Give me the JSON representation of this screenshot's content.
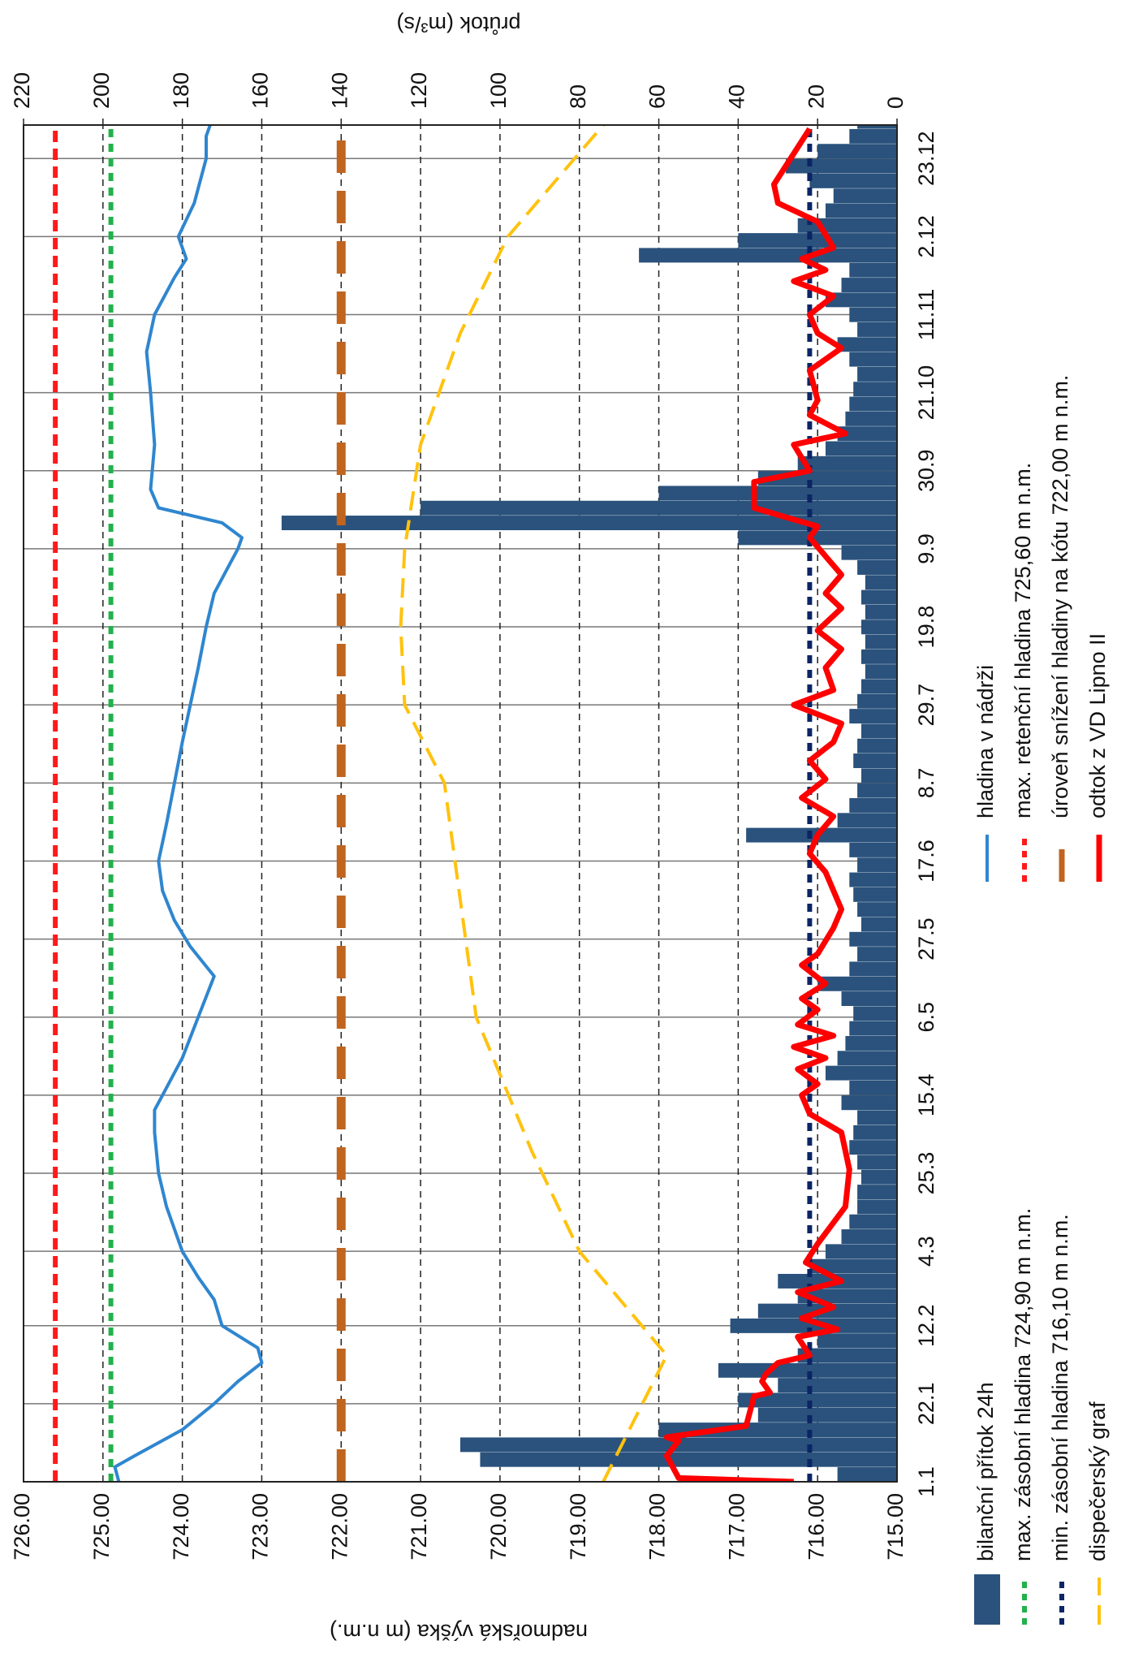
{
  "chart_data": {
    "type": "combo",
    "y_label": "nadmořská výška (m n.m.)",
    "y2_label": "průtok (m³/s)",
    "xlim": [
      1,
      366
    ],
    "xticks": [
      {
        "value": 1,
        "label": "1.1"
      },
      {
        "value": 22,
        "label": "22.1"
      },
      {
        "value": 43,
        "label": "12.2"
      },
      {
        "value": 63,
        "label": "4.3"
      },
      {
        "value": 84,
        "label": "25.3"
      },
      {
        "value": 105,
        "label": "15.4"
      },
      {
        "value": 126,
        "label": "6.5"
      },
      {
        "value": 147,
        "label": "27.5"
      },
      {
        "value": 168,
        "label": "17.6"
      },
      {
        "value": 189,
        "label": "8.7"
      },
      {
        "value": 210,
        "label": "29.7"
      },
      {
        "value": 231,
        "label": "19.8"
      },
      {
        "value": 252,
        "label": "9.9"
      },
      {
        "value": 273,
        "label": "30.9"
      },
      {
        "value": 294,
        "label": "21.10"
      },
      {
        "value": 315,
        "label": "11.11"
      },
      {
        "value": 336,
        "label": "2.12"
      },
      {
        "value": 357,
        "label": "23.12"
      }
    ],
    "ylim": [
      715,
      726
    ],
    "yticks": [
      {
        "value": 715,
        "label": "715.00"
      },
      {
        "value": 716,
        "label": "716.00"
      },
      {
        "value": 717,
        "label": "717.00"
      },
      {
        "value": 718,
        "label": "718.00"
      },
      {
        "value": 719,
        "label": "719.00"
      },
      {
        "value": 720,
        "label": "720.00"
      },
      {
        "value": 721,
        "label": "721.00"
      },
      {
        "value": 722,
        "label": "722.00"
      },
      {
        "value": 723,
        "label": "723.00"
      },
      {
        "value": 724,
        "label": "724.00"
      },
      {
        "value": 725,
        "label": "725.00"
      },
      {
        "value": 726,
        "label": "726.00"
      }
    ],
    "y2lim": [
      0,
      220
    ],
    "y2ticks": [
      0,
      20,
      40,
      60,
      80,
      100,
      120,
      140,
      160,
      180,
      200,
      220
    ],
    "grid": true,
    "series": [
      {
        "name": "bilanční přítok 24h",
        "type": "bar",
        "axis": "y2",
        "color": "#2a527c",
        "x": [
          1,
          5,
          9,
          13,
          17,
          21,
          25,
          29,
          33,
          37,
          41,
          45,
          49,
          53,
          57,
          61,
          65,
          69,
          73,
          77,
          81,
          85,
          89,
          93,
          97,
          101,
          105,
          109,
          113,
          117,
          121,
          125,
          129,
          133,
          137,
          141,
          145,
          149,
          153,
          157,
          161,
          165,
          169,
          173,
          177,
          181,
          185,
          189,
          193,
          197,
          201,
          205,
          209,
          213,
          217,
          221,
          225,
          229,
          233,
          237,
          241,
          245,
          249,
          253,
          257,
          261,
          265,
          269,
          273,
          277,
          281,
          285,
          289,
          293,
          297,
          301,
          305,
          309,
          313,
          317,
          321,
          325,
          329,
          333,
          337,
          341,
          345,
          349,
          353,
          357,
          361,
          365
        ],
        "values": [
          15,
          105,
          110,
          60,
          35,
          40,
          30,
          45,
          25,
          20,
          42,
          35,
          25,
          30,
          22,
          18,
          14,
          12,
          10,
          10,
          9,
          10,
          12,
          11,
          10,
          14,
          12,
          18,
          15,
          13,
          12,
          11,
          14,
          20,
          12,
          10,
          12,
          9,
          10,
          11,
          12,
          10,
          12,
          38,
          15,
          12,
          10,
          9,
          11,
          10,
          9,
          12,
          10,
          9,
          8,
          9,
          8,
          9,
          8,
          9,
          8,
          10,
          14,
          40,
          155,
          120,
          60,
          35,
          25,
          18,
          15,
          13,
          12,
          11,
          10,
          12,
          15,
          10,
          12,
          18,
          14,
          12,
          65,
          40,
          25,
          18,
          16,
          22,
          28,
          20,
          12,
          10
        ]
      },
      {
        "name": "hladina v nádrži",
        "type": "line",
        "axis": "y",
        "color": "#2f86cf",
        "x": [
          1,
          5,
          8,
          15,
          22,
          28,
          33,
          37,
          43,
          50,
          56,
          63,
          75,
          84,
          95,
          101,
          105,
          115,
          126,
          137,
          145,
          152,
          160,
          168,
          178,
          189,
          200,
          210,
          220,
          231,
          240,
          248,
          252,
          255,
          259,
          263,
          268,
          280,
          294,
          305,
          315,
          325,
          330,
          336,
          345,
          357,
          363,
          366
        ],
        "values": [
          724.8,
          724.85,
          724.6,
          724.0,
          723.6,
          723.3,
          723.0,
          723.05,
          723.5,
          723.6,
          723.8,
          724.0,
          724.2,
          724.3,
          724.35,
          724.35,
          724.25,
          724.0,
          723.8,
          723.6,
          723.9,
          724.1,
          724.25,
          724.3,
          724.2,
          724.1,
          724.0,
          723.9,
          723.8,
          723.7,
          723.6,
          723.4,
          723.3,
          723.25,
          723.5,
          724.3,
          724.4,
          724.35,
          724.4,
          724.45,
          724.35,
          724.1,
          723.95,
          724.05,
          723.85,
          723.7,
          723.7,
          723.65
        ]
      },
      {
        "name": "max. zásobní hladina 724,90 m n.m.",
        "type": "hline",
        "axis": "y",
        "color": "#22b14c",
        "value": 724.9
      },
      {
        "name": "max. retenční hladina 725,60 m n.m.",
        "type": "hline",
        "axis": "y",
        "color": "#ff1a1a",
        "value": 725.6
      },
      {
        "name": "min. zásobní hladina 716,10 m n.m.",
        "type": "hline",
        "axis": "y",
        "color": "#0b2566",
        "value": 716.1
      },
      {
        "name": "úroveň snížení hladiny na kótu 722,00 m n.m.",
        "type": "hline",
        "axis": "y",
        "color": "#c0641e",
        "value": 722
      },
      {
        "name": "dispečerský graf",
        "type": "line",
        "axis": "y",
        "color": "#ffc20e",
        "x": [
          1,
          35,
          63,
          90,
          126,
          189,
          210,
          231,
          252,
          280,
          310,
          336,
          366
        ],
        "values": [
          718.7,
          717.9,
          719.0,
          719.6,
          720.3,
          720.7,
          721.2,
          721.25,
          721.2,
          721.0,
          720.5,
          719.9,
          718.7
        ]
      },
      {
        "name": "odtok z VD Lipno II",
        "type": "line",
        "axis": "y2",
        "color": "#ff0000",
        "x": [
          1,
          2,
          8,
          12,
          13,
          16,
          24,
          25,
          28,
          30,
          33,
          35,
          40,
          42,
          45,
          48,
          52,
          55,
          60,
          65,
          75,
          85,
          95,
          100,
          105,
          108,
          112,
          115,
          118,
          121,
          124,
          128,
          131,
          135,
          140,
          143,
          150,
          155,
          165,
          170,
          175,
          180,
          185,
          190,
          195,
          200,
          205,
          210,
          214,
          220,
          225,
          230,
          236,
          240,
          245,
          250,
          255,
          258,
          263,
          270,
          273,
          280,
          283,
          288,
          292,
          300,
          306,
          310,
          315,
          320,
          324,
          327,
          330,
          333,
          340,
          345,
          350,
          365
        ],
        "values": [
          26,
          55,
          58,
          55,
          58,
          38,
          36,
          32,
          34,
          33,
          30,
          22,
          25,
          15,
          24,
          16,
          25,
          14,
          23,
          20,
          13,
          12,
          14,
          22,
          24,
          20,
          25,
          18,
          26,
          16,
          25,
          20,
          24,
          18,
          24,
          20,
          16,
          14,
          18,
          22,
          20,
          16,
          24,
          18,
          22,
          16,
          14,
          26,
          16,
          18,
          14,
          20,
          14,
          18,
          14,
          18,
          22,
          20,
          36,
          36,
          22,
          26,
          13,
          22,
          20,
          22,
          14,
          20,
          22,
          16,
          26,
          18,
          24,
          16,
          20,
          30,
          31,
          22
        ]
      }
    ]
  }
}
